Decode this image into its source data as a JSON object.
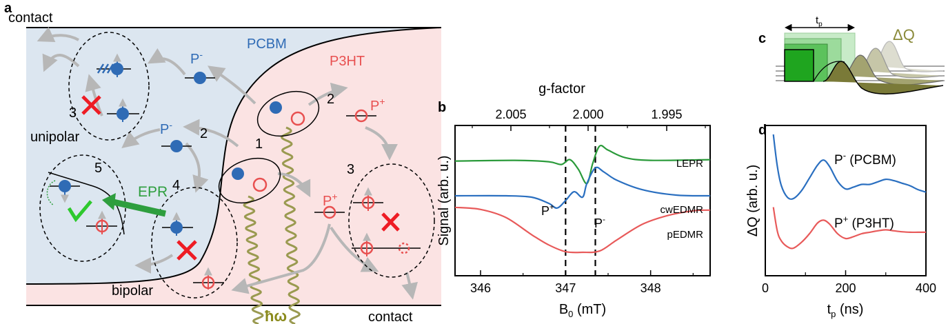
{
  "colors": {
    "pcbm_region": "#dce6f0",
    "p3ht_region": "#fbe3e3",
    "electron": "#2f6bb5",
    "hole": "#e85050",
    "arrow_gray": "#b7b7b7",
    "epr_green": "#2e9e3e",
    "cross_red": "#ee1c24",
    "photon": "#9a9a50",
    "photon_label": "#8a8a1c",
    "lepr_trace": "#2a9a3a",
    "cwedmr_trace": "#2a6fc0",
    "pedmr_trace": "#e85a5a",
    "dq_label": "#8a8a3a"
  },
  "panel_a": {
    "label": "a",
    "contact_top": "contact",
    "contact_bottom": "contact",
    "pcbm": "PCBM",
    "p3ht": "P3HT",
    "unipolar": "unipolar",
    "bipolar": "bipolar",
    "epr": "EPR",
    "photon": "ħω",
    "p_minus": "P",
    "p_plus": "P",
    "sup_minus": "-",
    "sup_plus": "+",
    "n1": "1",
    "n2": "2",
    "n3": "3",
    "n4": "4",
    "n5": "5"
  },
  "panel_b": {
    "label": "b",
    "top_axis_title": "g-factor",
    "top_ticks": [
      "2.005",
      "2.000",
      "1.995"
    ],
    "bottom_ticks": [
      "346",
      "347",
      "348"
    ],
    "xlabel_main": "B",
    "xlabel_sub": "0",
    "xlabel_unit": " (mT)",
    "ylabel": "Signal (arb. u.)",
    "trace_lepr": "LEPR",
    "trace_cwedmr": "cwEDMR",
    "trace_pedmr": "pEDMR",
    "marker_p_plus": "P",
    "marker_p_minus": "P",
    "sup_plus": "+",
    "sup_minus": "-"
  },
  "panel_c": {
    "label": "c",
    "tp_main": "t",
    "tp_sub": "p",
    "delta_q": "ΔQ"
  },
  "panel_d": {
    "label": "d",
    "ylabel": "ΔQ (arb. u.)",
    "xlabel_main": "t",
    "xlabel_sub": "p",
    "xlabel_unit": " (ns)",
    "x_ticks": [
      "0",
      "200",
      "400"
    ],
    "series_1_main": "P",
    "series_1_sup": "-",
    "series_1_rest": " (PCBM)",
    "series_2_main": "P",
    "series_2_sup": "+",
    "series_2_rest": " (P3HT)"
  },
  "chart_data": [
    {
      "type": "line",
      "x_unit": "mT",
      "xlim": [
        345.7,
        348.7
      ],
      "x_ticks": [
        346,
        347,
        348
      ],
      "top_axis_ticks": [
        2.005,
        2.0,
        1.995
      ],
      "markers": [
        {
          "label": "P+",
          "x": 347.0
        },
        {
          "label": "P-",
          "x": 347.35
        }
      ],
      "series": [
        {
          "name": "LEPR",
          "x": [
            345.7,
            346.4,
            346.8,
            346.95,
            347.05,
            347.15,
            347.25,
            347.32,
            347.4,
            347.5,
            347.7,
            348.0,
            348.7
          ],
          "y": [
            0.78,
            0.79,
            0.77,
            0.73,
            0.8,
            0.66,
            0.45,
            0.75,
            1.0,
            0.94,
            0.83,
            0.79,
            0.8
          ]
        },
        {
          "name": "cwEDMR",
          "x": [
            345.7,
            346.3,
            346.6,
            346.8,
            346.9,
            347.0,
            347.1,
            347.2,
            347.25,
            347.35,
            347.45,
            347.6,
            347.9,
            348.3,
            348.7
          ],
          "y": [
            0.27,
            0.27,
            0.25,
            0.16,
            0.09,
            0.2,
            0.33,
            0.25,
            0.45,
            0.68,
            0.62,
            0.5,
            0.36,
            0.28,
            0.27
          ]
        },
        {
          "name": "pEDMR",
          "x": [
            345.7,
            346.0,
            346.3,
            346.6,
            346.8,
            347.0,
            347.2,
            347.4,
            347.6,
            347.9,
            348.2,
            348.5,
            348.7
          ],
          "y": [
            0.1,
            0.07,
            -0.05,
            -0.3,
            -0.45,
            -0.55,
            -0.56,
            -0.54,
            -0.38,
            -0.15,
            -0.02,
            0.05,
            0.06
          ]
        }
      ]
    },
    {
      "type": "line",
      "x_unit": "ns",
      "xlim": [
        0,
        400
      ],
      "x_ticks": [
        0,
        200,
        400
      ],
      "series": [
        {
          "name": "P- (PCBM)",
          "x": [
            20,
            30,
            40,
            55,
            70,
            90,
            110,
            130,
            145,
            160,
            180,
            200,
            220,
            240,
            260,
            280,
            300,
            320,
            340,
            360,
            380,
            400
          ],
          "y": [
            1.0,
            0.5,
            0.2,
            0.02,
            0.0,
            0.12,
            0.32,
            0.52,
            0.6,
            0.5,
            0.27,
            0.15,
            0.18,
            0.22,
            0.22,
            0.26,
            0.3,
            0.28,
            0.24,
            0.2,
            0.14,
            0.1
          ]
        },
        {
          "name": "P+ (P3HT)",
          "x": [
            20,
            30,
            40,
            55,
            70,
            90,
            110,
            130,
            145,
            160,
            180,
            200,
            220,
            240,
            260,
            280,
            300,
            320,
            340,
            360,
            380,
            400
          ],
          "y": [
            0.85,
            0.35,
            0.15,
            0.03,
            0.0,
            0.12,
            0.3,
            0.52,
            0.58,
            0.5,
            0.3,
            0.2,
            0.24,
            0.3,
            0.33,
            0.36,
            0.38,
            0.36,
            0.34,
            0.33,
            0.33,
            0.33
          ]
        }
      ]
    }
  ]
}
